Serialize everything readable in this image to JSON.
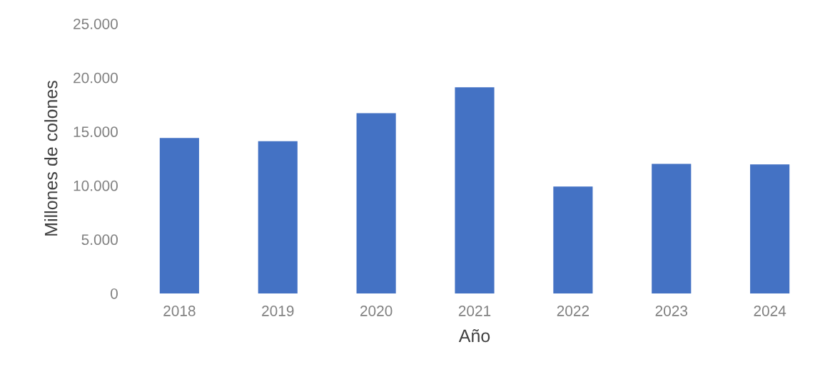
{
  "chart_data": {
    "type": "bar",
    "categories": [
      "2018",
      "2019",
      "2020",
      "2021",
      "2022",
      "2023",
      "2024"
    ],
    "values": [
      14400,
      14100,
      16700,
      19100,
      9900,
      12000,
      11950
    ],
    "color": "#4472c4",
    "xlabel": "Año",
    "ylabel": "Millones de colones",
    "ylim": [
      0,
      25000
    ],
    "yticks": [
      {
        "value": 0,
        "label": "0"
      },
      {
        "value": 5000,
        "label": "5.000"
      },
      {
        "value": 10000,
        "label": "10.000"
      },
      {
        "value": 15000,
        "label": "15.000"
      },
      {
        "value": 20000,
        "label": "20.000"
      },
      {
        "value": 25000,
        "label": "25.000"
      }
    ],
    "grid": false,
    "legend": false
  }
}
